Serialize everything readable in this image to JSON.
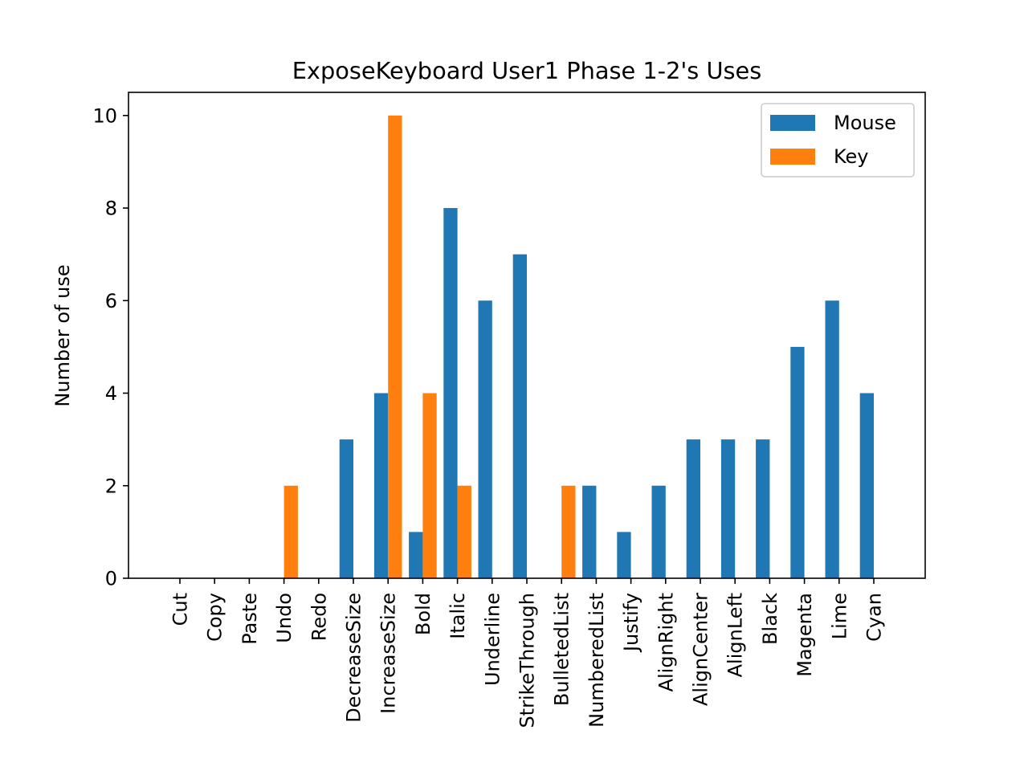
{
  "chart_data": {
    "type": "bar",
    "title": "ExposeKeyboard User1 Phase 1-2's Uses",
    "xlabel": "",
    "ylabel": "Number of use",
    "ylim": [
      0,
      10.5
    ],
    "yticks": [
      "0",
      "2",
      "4",
      "6",
      "8",
      "10"
    ],
    "grid": false,
    "legend_position": "top-right",
    "categories": [
      "Cut",
      "Copy",
      "Paste",
      "Undo",
      "Redo",
      "DecreaseSize",
      "IncreaseSize",
      "Bold",
      "Italic",
      "Underline",
      "StrikeThrough",
      "BulletedList",
      "NumberedList",
      "Justify",
      "AlignRight",
      "AlignCenter",
      "AlignLeft",
      "Black",
      "Magenta",
      "Lime",
      "Cyan"
    ],
    "series": [
      {
        "name": "Mouse",
        "color": "#1f77b4",
        "values": [
          0,
          0,
          0,
          0,
          0,
          3,
          4,
          1,
          8,
          6,
          7,
          0,
          2,
          1,
          2,
          3,
          3,
          3,
          5,
          6,
          4
        ]
      },
      {
        "name": "Key",
        "color": "#ff7f0e",
        "values": [
          0,
          0,
          0,
          2,
          0,
          0,
          10,
          4,
          2,
          0,
          0,
          2,
          0,
          0,
          0,
          0,
          0,
          0,
          0,
          0,
          0
        ]
      }
    ]
  }
}
